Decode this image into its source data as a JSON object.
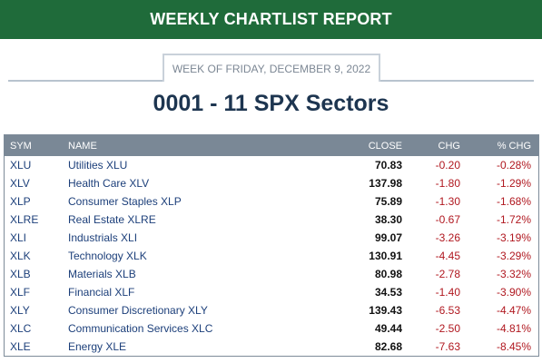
{
  "banner": {
    "title": "WEEKLY CHARTLIST REPORT"
  },
  "week": {
    "label": "WEEK OF FRIDAY, DECEMBER 9, 2022"
  },
  "report": {
    "title": "0001 - 11 SPX Sectors"
  },
  "colors": {
    "banner_bg": "#1f6b3a",
    "header_bg": "#7a8896",
    "negative": "#b0171f",
    "link": "#1c3f7a"
  },
  "table": {
    "headers": {
      "sym": "SYM",
      "name": "NAME",
      "close": "CLOSE",
      "chg": "CHG",
      "pct": "% CHG"
    },
    "rows": [
      {
        "sym": "XLU",
        "name": "Utilities XLU",
        "close": "70.83",
        "chg": "-0.20",
        "pct": "-0.28%"
      },
      {
        "sym": "XLV",
        "name": "Health Care XLV",
        "close": "137.98",
        "chg": "-1.80",
        "pct": "-1.29%"
      },
      {
        "sym": "XLP",
        "name": "Consumer Staples XLP",
        "close": "75.89",
        "chg": "-1.30",
        "pct": "-1.68%"
      },
      {
        "sym": "XLRE",
        "name": "Real Estate XLRE",
        "close": "38.30",
        "chg": "-0.67",
        "pct": "-1.72%"
      },
      {
        "sym": "XLI",
        "name": "Industrials XLI",
        "close": "99.07",
        "chg": "-3.26",
        "pct": "-3.19%"
      },
      {
        "sym": "XLK",
        "name": "Technology XLK",
        "close": "130.91",
        "chg": "-4.45",
        "pct": "-3.29%"
      },
      {
        "sym": "XLB",
        "name": "Materials XLB",
        "close": "80.98",
        "chg": "-2.78",
        "pct": "-3.32%"
      },
      {
        "sym": "XLF",
        "name": "Financial XLF",
        "close": "34.53",
        "chg": "-1.40",
        "pct": "-3.90%"
      },
      {
        "sym": "XLY",
        "name": "Consumer Discretionary XLY",
        "close": "139.43",
        "chg": "-6.53",
        "pct": "-4.47%"
      },
      {
        "sym": "XLC",
        "name": "Communication Services XLC",
        "close": "49.44",
        "chg": "-2.50",
        "pct": "-4.81%"
      },
      {
        "sym": "XLE",
        "name": "Energy XLE",
        "close": "82.68",
        "chg": "-7.63",
        "pct": "-8.45%"
      }
    ]
  }
}
